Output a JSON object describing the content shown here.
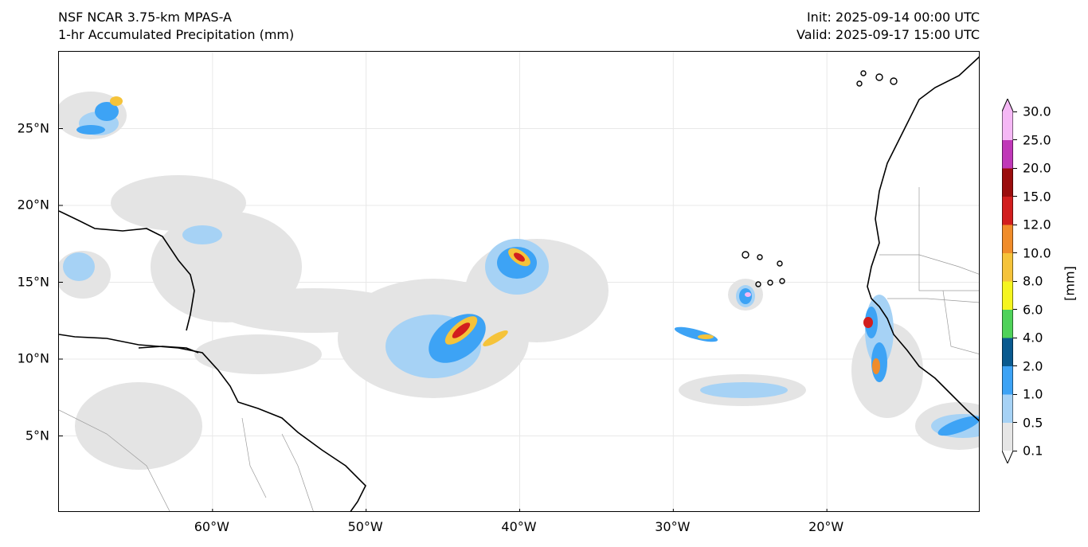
{
  "header": {
    "model": "NSF NCAR 3.75-km MPAS-A",
    "field": "1-hr Accumulated Precipitation (mm)",
    "init": "Init: 2025-09-14 00:00 UTC",
    "valid": "Valid: 2025-09-17 15:00 UTC"
  },
  "map": {
    "lat_ticks": [
      {
        "label": "25°N",
        "value": 25
      },
      {
        "label": "20°N",
        "value": 20
      },
      {
        "label": "15°N",
        "value": 15
      },
      {
        "label": "10°N",
        "value": 10
      },
      {
        "label": "5°N",
        "value": 5
      }
    ],
    "lon_ticks": [
      {
        "label": "60°W",
        "value": -60
      },
      {
        "label": "50°W",
        "value": -50
      },
      {
        "label": "40°W",
        "value": -40
      },
      {
        "label": "30°W",
        "value": -30
      },
      {
        "label": "20°W",
        "value": -20
      }
    ],
    "extent": {
      "lon_min": -70,
      "lon_max": -10,
      "lat_min": 0,
      "lat_max": 30
    },
    "gridlines": true
  },
  "colorbar": {
    "unit_label": "[mm]",
    "levels": [
      "0.1",
      "0.5",
      "1.0",
      "2.0",
      "4.0",
      "6.0",
      "8.0",
      "10.0",
      "12.0",
      "15.0",
      "20.0",
      "25.0",
      "30.0"
    ],
    "colors": [
      "#e6e6e6",
      "#a6d2f5",
      "#3da3f5",
      "#0a5a8f",
      "#4fd25a",
      "#f5f51f",
      "#f5c33a",
      "#f08c2a",
      "#d21e1e",
      "#9b0d0d",
      "#c038b8",
      "#f5b8f5"
    ],
    "extend": "both"
  }
}
